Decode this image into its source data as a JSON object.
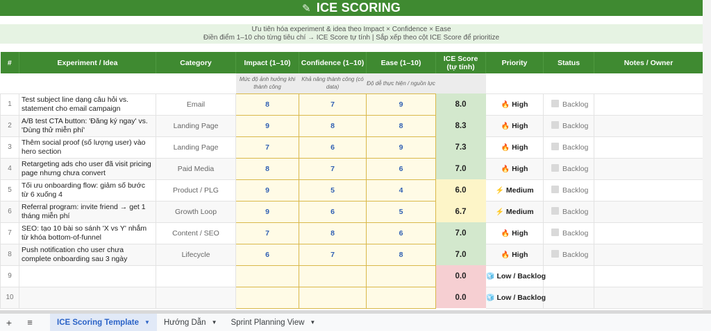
{
  "title": {
    "icon": "pencil-icon",
    "icon_glyph": "✎",
    "text": "ICE SCORING"
  },
  "subtitle": {
    "line1": "Ưu tiên hóa experiment & idea theo Impact × Confidence × Ease",
    "line2": "Điền điểm 1–10 cho từng tiêu chí → ICE Score tự tính | Sắp xếp theo cột ICE Score để prioritize"
  },
  "columns": {
    "num": "#",
    "idea": "Experiment / Idea",
    "category": "Category",
    "impact": "Impact (1–10)",
    "confidence": "Confidence (1–10)",
    "ease": "Ease (1–10)",
    "ice": "ICE Score (tự tính)",
    "priority": "Priority",
    "status": "Status",
    "notes": "Notes / Owner"
  },
  "column_descriptions": {
    "impact": "Mức độ ảnh hưởng khi thành công",
    "confidence": "Khả năng thành công (có data)",
    "ease": "Độ dễ thực hiện / nguồn lực"
  },
  "priority_icons": {
    "High": "🔥",
    "Medium": "⚡",
    "Low / Backlog": "🧊"
  },
  "colors": {
    "header_green": "#3f8a31",
    "score_fill": "#fffbe6",
    "score_border": "#d9b84a",
    "score_text": "#2f5fb3",
    "ice_green": "#d3e8cd",
    "ice_yellow": "#fdf5c8",
    "ice_red": "#f6cfd2"
  },
  "rows": [
    {
      "num": "1",
      "idea": "Test subject line dạng câu hỏi vs. statement cho email campaign",
      "category": "Email",
      "impact": "8",
      "confidence": "7",
      "ease": "9",
      "ice": "8.0",
      "ice_level": "green",
      "priority": "High",
      "status": "Backlog",
      "notes": ""
    },
    {
      "num": "2",
      "idea": "A/B test CTA button: 'Đăng ký ngay' vs. 'Dùng thử miễn phí'",
      "category": "Landing Page",
      "impact": "9",
      "confidence": "8",
      "ease": "8",
      "ice": "8.3",
      "ice_level": "green",
      "priority": "High",
      "status": "Backlog",
      "notes": ""
    },
    {
      "num": "3",
      "idea": "Thêm social proof (số lượng user) vào hero section",
      "category": "Landing Page",
      "impact": "7",
      "confidence": "6",
      "ease": "9",
      "ice": "7.3",
      "ice_level": "green",
      "priority": "High",
      "status": "Backlog",
      "notes": ""
    },
    {
      "num": "4",
      "idea": "Retargeting ads cho user đã visit pricing page nhưng chưa convert",
      "category": "Paid Media",
      "impact": "8",
      "confidence": "7",
      "ease": "6",
      "ice": "7.0",
      "ice_level": "green",
      "priority": "High",
      "status": "Backlog",
      "notes": ""
    },
    {
      "num": "5",
      "idea": "Tối ưu onboarding flow: giảm số bước từ 6 xuống 4",
      "category": "Product / PLG",
      "impact": "9",
      "confidence": "5",
      "ease": "4",
      "ice": "6.0",
      "ice_level": "yellow",
      "priority": "Medium",
      "status": "Backlog",
      "notes": ""
    },
    {
      "num": "6",
      "idea": "Referral program: invite friend → get 1 tháng miễn phí",
      "category": "Growth Loop",
      "impact": "9",
      "confidence": "6",
      "ease": "5",
      "ice": "6.7",
      "ice_level": "yellow",
      "priority": "Medium",
      "status": "Backlog",
      "notes": ""
    },
    {
      "num": "7",
      "idea": "SEO: tạo 10 bài so sánh 'X vs Y' nhắm từ khóa bottom-of-funnel",
      "category": "Content / SEO",
      "impact": "7",
      "confidence": "8",
      "ease": "6",
      "ice": "7.0",
      "ice_level": "green",
      "priority": "High",
      "status": "Backlog",
      "notes": ""
    },
    {
      "num": "8",
      "idea": "Push notification cho user chưa complete onboarding sau 3 ngày",
      "category": "Lifecycle",
      "impact": "6",
      "confidence": "7",
      "ease": "8",
      "ice": "7.0",
      "ice_level": "green",
      "priority": "High",
      "status": "Backlog",
      "notes": ""
    },
    {
      "num": "9",
      "idea": "",
      "category": "",
      "impact": "",
      "confidence": "",
      "ease": "",
      "ice": "0.0",
      "ice_level": "red",
      "priority": "Low / Backlog",
      "status": "",
      "notes": ""
    },
    {
      "num": "10",
      "idea": "",
      "category": "",
      "impact": "",
      "confidence": "",
      "ease": "",
      "ice": "0.0",
      "ice_level": "red",
      "priority": "Low / Backlog",
      "status": "",
      "notes": ""
    }
  ],
  "sheet_tabs": {
    "add_label": "+",
    "menu_label": "≡",
    "tabs": [
      {
        "label": "ICE Scoring Template",
        "active": true
      },
      {
        "label": "Hướng Dẫn",
        "active": false
      },
      {
        "label": "Sprint Planning View",
        "active": false
      }
    ]
  }
}
